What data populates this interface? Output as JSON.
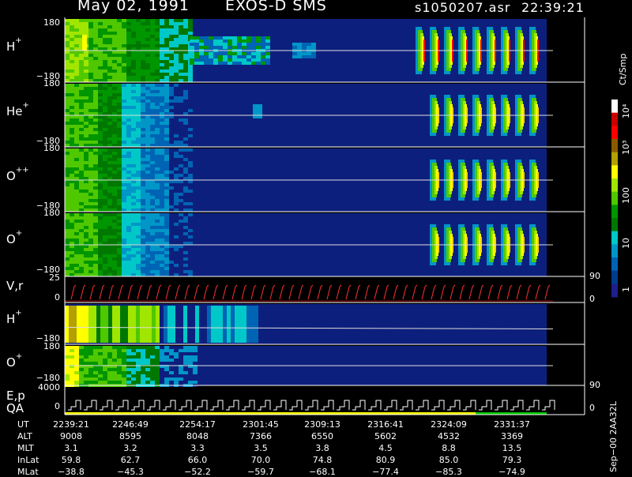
{
  "header": {
    "date": "May 02, 1991",
    "instrument": "EXOS-D SMS",
    "file": "s1050207.asr",
    "time": "22:39:21"
  },
  "panels": [
    {
      "id": "H+",
      "label": "H",
      "sup": "+",
      "top": "180",
      "bottom": "−180"
    },
    {
      "id": "He+",
      "label": "He",
      "sup": "+",
      "top": "180",
      "bottom": "−180"
    },
    {
      "id": "O++",
      "label": "O",
      "sup": "++",
      "top": "180",
      "bottom": "−180"
    },
    {
      "id": "O+",
      "label": "O",
      "sup": "+",
      "top": "180",
      "bottom": "−180"
    }
  ],
  "vr_panel": {
    "label": "V,r",
    "top": "25",
    "bottom": "0",
    "right_top": "90",
    "right_bottom": "0"
  },
  "lower_panels": [
    {
      "id": "H+low",
      "label": "H",
      "sup": "+",
      "top": "180",
      "bottom": "−180"
    },
    {
      "id": "O+low",
      "label": "O",
      "sup": "+",
      "top": "180",
      "bottom": "−180",
      "right_bottom": "90"
    }
  ],
  "ep_panel": {
    "label1": "E,p",
    "label2": "QA",
    "top": "4000",
    "bottom": "0",
    "right": "0"
  },
  "colorbar": {
    "unit": "Ct/Smp",
    "labels": [
      "10⁴",
      "10³",
      "100",
      "10",
      "1"
    ],
    "colors": [
      "#ffffff",
      "#c80000",
      "#ff0000",
      "#8b5a00",
      "#b4a000",
      "#ffff00",
      "#a0e600",
      "#50c800",
      "#009600",
      "#007800",
      "#00c8c8",
      "#0096c8",
      "#0064b4",
      "#003c8c",
      "#1e1e8c"
    ]
  },
  "footer": {
    "rows": [
      {
        "name": "UT",
        "values": [
          "2239:21",
          "2246:49",
          "2254:17",
          "2301:45",
          "2309:13",
          "2316:41",
          "2324:09",
          "2331:37"
        ]
      },
      {
        "name": "ALT",
        "values": [
          "9008",
          "8595",
          "8048",
          "7366",
          "6550",
          "5602",
          "4532",
          "3369"
        ]
      },
      {
        "name": "MLT",
        "values": [
          "3.1",
          "3.2",
          "3.3",
          "3.5",
          "3.8",
          "4.5",
          "8.8",
          "13.5"
        ]
      },
      {
        "name": "InLat",
        "values": [
          "59.8",
          "62.7",
          "66.0",
          "70.0",
          "74.8",
          "80.9",
          "85.0",
          "79.3"
        ]
      },
      {
        "name": "MLat",
        "values": [
          "−38.8",
          "−45.3",
          "−52.2",
          "−59.7",
          "−68.1",
          "−77.4",
          "−85.3",
          "−74.9"
        ]
      }
    ],
    "side": "Sep−00 2AA32L"
  },
  "chart_data": {
    "type": "heatmap",
    "title": "May 02, 1991  EXOS-D SMS",
    "x": [
      "2239:21",
      "2246:49",
      "2254:17",
      "2301:45",
      "2309:13",
      "2316:41",
      "2324:09",
      "2331:37"
    ],
    "ylim": [
      -180,
      180
    ],
    "series": [
      {
        "name": "H+",
        "pitch_angle_range": [
          -180,
          180
        ]
      },
      {
        "name": "He+",
        "pitch_angle_range": [
          -180,
          180
        ]
      },
      {
        "name": "O++",
        "pitch_angle_range": [
          -180,
          180
        ]
      },
      {
        "name": "O+",
        "pitch_angle_range": [
          -180,
          180
        ]
      }
    ],
    "colorbar_range": [
      1,
      10000
    ],
    "colorbar_scale": "log"
  }
}
